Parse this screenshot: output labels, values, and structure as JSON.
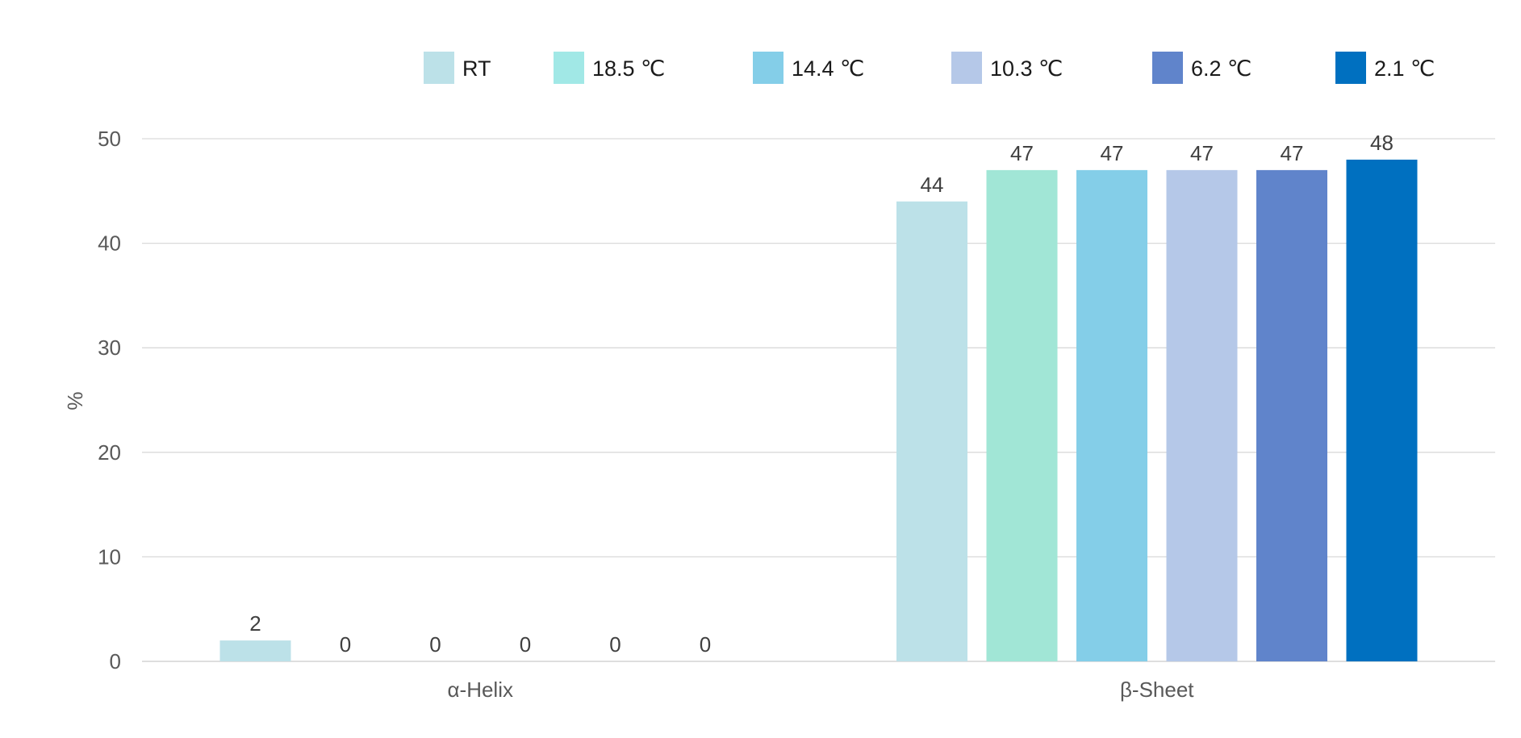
{
  "chart_data": {
    "type": "bar",
    "categories": [
      "α-Helix",
      "β-Sheet"
    ],
    "series": [
      {
        "name": "RT",
        "values": [
          2,
          44
        ],
        "color": "#BCE1E8"
      },
      {
        "name": "18.5 ℃",
        "values": [
          0,
          47
        ],
        "color": "#A1E6D6"
      },
      {
        "name": "14.4 ℃",
        "values": [
          0,
          47
        ],
        "color": "#84CEE8"
      },
      {
        "name": "10.3 ℃",
        "values": [
          0,
          47
        ],
        "color": "#B5C8E8"
      },
      {
        "name": "6.2 ℃",
        "values": [
          0,
          47
        ],
        "color": "#6084CB"
      },
      {
        "name": "2.1 ℃",
        "values": [
          0,
          48
        ],
        "color": "#0070C0"
      }
    ],
    "legend_swatch_colors": [
      "#BCE1E8",
      "#A1E8E6",
      "#84CEE8",
      "#B5C8E8",
      "#6084CB",
      "#0070C0"
    ],
    "xlabel": "",
    "ylabel": "%",
    "ylim": [
      0,
      50
    ],
    "yticks": [
      0,
      10,
      20,
      30,
      40,
      50
    ],
    "grid": true,
    "legend_position": "top",
    "data_labels": true
  }
}
